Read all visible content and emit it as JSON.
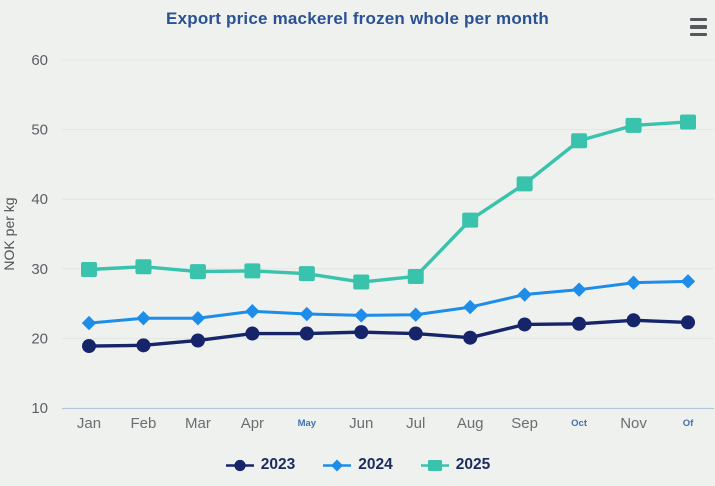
{
  "header": {
    "title": "Export price mackerel frozen whole per month"
  },
  "colors": {
    "background": "#eff1ee",
    "title_text": "#2b5195",
    "grid_line": "#e3e6e1",
    "axis_line": "#b4c7da",
    "y_tick_text": "#5b5f63",
    "x_tick_text": "#6a6e71",
    "x_tick_small_text": "#3e73ae",
    "axis_title_text": "#4e5256",
    "legend_text": "#1c2b5e",
    "menu_icon": "#54585c"
  },
  "chart_data": {
    "type": "line",
    "title": "Export price mackerel frozen whole per month",
    "xlabel": "",
    "ylabel": "NOK per kg",
    "ylim": [
      10,
      60
    ],
    "yticks": [
      10,
      20,
      30,
      40,
      50,
      60
    ],
    "grid": true,
    "legend_position": "bottom",
    "categories": [
      "Jan",
      "Feb",
      "Mar",
      "Apr",
      "May",
      "Jun",
      "Jul",
      "Aug",
      "Sep",
      "Oct",
      "Nov",
      "Of"
    ],
    "small_label_indices": [
      4,
      9,
      11
    ],
    "series": [
      {
        "name": "2023",
        "color": "#16246a",
        "marker": "circle",
        "values": [
          18.9,
          19.0,
          19.7,
          20.7,
          20.7,
          20.9,
          20.7,
          20.1,
          22.0,
          22.1,
          22.6,
          22.3
        ]
      },
      {
        "name": "2024",
        "color": "#1d8de9",
        "marker": "diamond",
        "values": [
          22.2,
          22.9,
          22.9,
          23.9,
          23.5,
          23.3,
          23.4,
          24.5,
          26.3,
          27.0,
          28.0,
          28.2
        ]
      },
      {
        "name": "2025",
        "color": "#39c2ac",
        "marker": "square",
        "values": [
          29.9,
          30.3,
          29.6,
          29.7,
          29.3,
          28.1,
          28.9,
          37.0,
          42.2,
          48.4,
          50.6,
          51.1
        ]
      }
    ]
  }
}
